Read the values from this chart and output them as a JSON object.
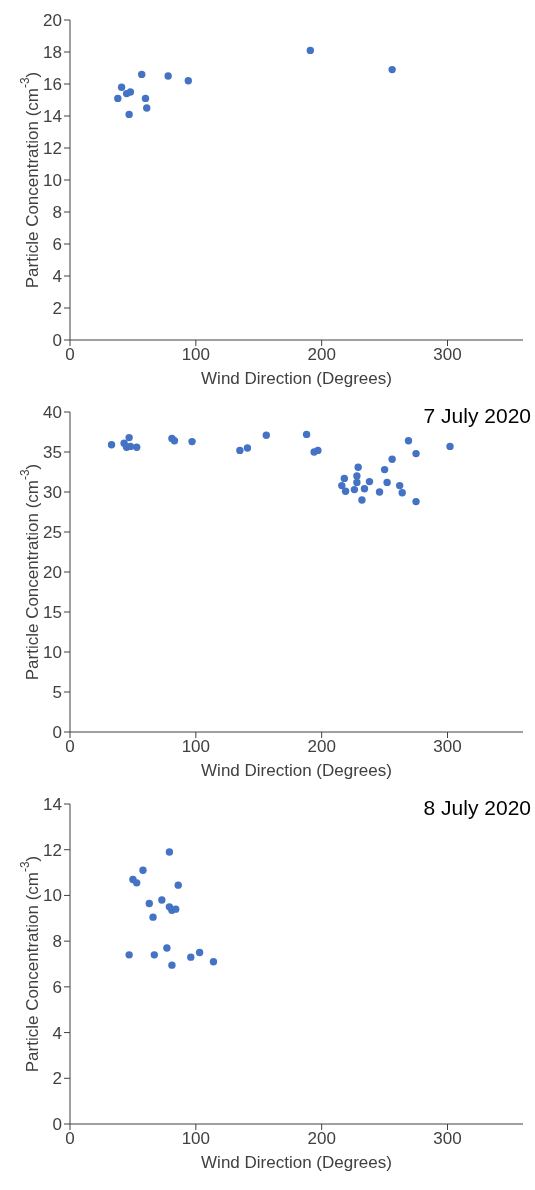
{
  "chart_data": [
    {
      "type": "scatter",
      "xlabel": "Wind Direction (Degrees)",
      "ylabel": "Particle Concentration (cm$^{-3}$)",
      "color": "#4472c4",
      "marker": "circle",
      "xlim": [
        0,
        360
      ],
      "xticks": [
        0,
        100,
        200,
        300
      ],
      "ylim": [
        0,
        20
      ],
      "yticks": [
        0,
        2,
        4,
        6,
        8,
        10,
        12,
        14,
        16,
        18,
        20
      ],
      "x": [
        38,
        41,
        45,
        48,
        47,
        57,
        60,
        61,
        78,
        94,
        191,
        256
      ],
      "values": [
        15.1,
        15.8,
        15.4,
        15.5,
        14.1,
        16.6,
        15.1,
        14.5,
        16.5,
        16.2,
        18.1,
        16.9
      ]
    },
    {
      "type": "scatter",
      "xlabel": "Wind Direction (Degrees)",
      "ylabel": "Particle Concentration (cm$^{-3}$)",
      "color": "#4472c4",
      "marker": "circle",
      "xlim": [
        0,
        360
      ],
      "xticks": [
        0,
        100,
        200,
        300
      ],
      "ylim": [
        0,
        40
      ],
      "yticks": [
        0,
        5,
        10,
        15,
        20,
        25,
        30,
        35,
        40
      ],
      "annotations": [
        "7 July 2020"
      ],
      "x": [
        33,
        43,
        45,
        47,
        48,
        53,
        81,
        83,
        97,
        135,
        141,
        156,
        188,
        194,
        197,
        216,
        218,
        219,
        226,
        228,
        228,
        229,
        232,
        234,
        238,
        246,
        250,
        252,
        256,
        262,
        264,
        269,
        275,
        275,
        302
      ],
      "values": [
        35.9,
        36.1,
        35.6,
        36.8,
        35.7,
        35.6,
        36.7,
        36.4,
        36.3,
        35.2,
        35.5,
        37.1,
        37.2,
        35.0,
        35.2,
        30.8,
        31.7,
        30.1,
        30.3,
        31.2,
        32.0,
        33.1,
        29.0,
        30.4,
        31.3,
        30.0,
        32.8,
        31.2,
        34.1,
        30.8,
        29.9,
        36.4,
        34.8,
        28.8,
        35.7
      ]
    },
    {
      "type": "scatter",
      "xlabel": "Wind Direction (Degrees)",
      "ylabel": "Particle Concentration (cm$^{-3}$)",
      "color": "#4472c4",
      "marker": "circle",
      "xlim": [
        0,
        360
      ],
      "xticks": [
        0,
        100,
        200,
        300
      ],
      "ylim": [
        0,
        14
      ],
      "yticks": [
        0,
        2,
        4,
        6,
        8,
        10,
        12,
        14
      ],
      "annotations": [
        "8 July 2020"
      ],
      "x": [
        47,
        50,
        53,
        58,
        63,
        66,
        67,
        73,
        77,
        79,
        79,
        81,
        81,
        84,
        86,
        96,
        103,
        114
      ],
      "values": [
        7.4,
        10.7,
        10.55,
        11.1,
        9.65,
        9.05,
        7.4,
        9.8,
        7.7,
        11.9,
        9.5,
        6.95,
        9.35,
        9.4,
        10.45,
        7.3,
        7.5,
        7.1
      ]
    }
  ]
}
